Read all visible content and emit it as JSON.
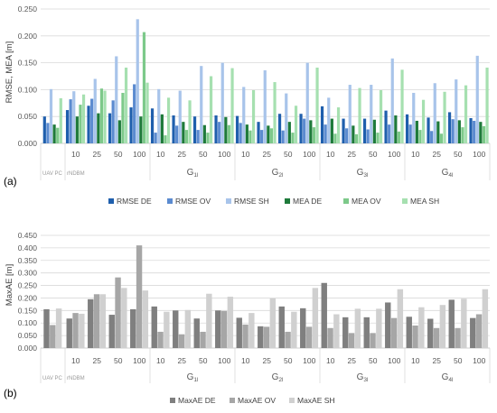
{
  "charts": [
    {
      "panel_label": "(a)",
      "chart_data": {
        "type": "bar",
        "ylabel": "RMSE, MEA [m]",
        "ylim": [
          0,
          0.25
        ],
        "yticks": [
          "0.000",
          "0.050",
          "0.100",
          "0.150",
          "0.200",
          "0.250"
        ],
        "grid": true,
        "legend_position": "bottom",
        "groups": [
          {
            "name": "UAV PC",
            "sub": "",
            "categories": [
              ""
            ]
          },
          {
            "name": "rNDBM",
            "sub": "",
            "categories": [
              "10",
              "25",
              "50",
              "100"
            ]
          },
          {
            "name": "G",
            "sub": "1l",
            "categories": [
              "10",
              "25",
              "50",
              "100"
            ]
          },
          {
            "name": "G",
            "sub": "2l",
            "categories": [
              "10",
              "25",
              "50",
              "100"
            ]
          },
          {
            "name": "G",
            "sub": "3l",
            "categories": [
              "10",
              "25",
              "50",
              "100"
            ]
          },
          {
            "name": "G",
            "sub": "4l",
            "categories": [
              "10",
              "25",
              "50",
              "100"
            ]
          }
        ],
        "series": [
          {
            "name": "RMSE DE",
            "color": "#1f5fad",
            "values": [
              0.05,
              0.062,
              0.07,
              0.056,
              0.067,
              0.065,
              0.052,
              0.05,
              0.052,
              0.051,
              0.04,
              0.055,
              0.055,
              0.069,
              0.046,
              0.046,
              0.061,
              0.054,
              0.048,
              0.058,
              0.047
            ]
          },
          {
            "name": "RMSE OV",
            "color": "#5b8bd0",
            "values": [
              0.038,
              0.082,
              0.083,
              0.08,
              0.11,
              0.02,
              0.033,
              0.025,
              0.04,
              0.038,
              0.025,
              0.024,
              0.046,
              0.035,
              0.028,
              0.026,
              0.035,
              0.035,
              0.023,
              0.045,
              0.042
            ]
          },
          {
            "name": "RMSE SH",
            "color": "#a8c4ea",
            "values": [
              0.101,
              0.097,
              0.12,
              0.162,
              0.231,
              0.101,
              0.098,
              0.144,
              0.15,
              0.105,
              0.136,
              0.093,
              0.15,
              0.085,
              0.109,
              0.109,
              0.158,
              0.094,
              0.112,
              0.119,
              0.163
            ]
          },
          {
            "name": "MEA DE",
            "color": "#1e7a3a",
            "values": [
              0.035,
              0.05,
              0.056,
              0.043,
              0.05,
              0.054,
              0.04,
              0.034,
              0.049,
              0.035,
              0.033,
              0.04,
              0.043,
              0.046,
              0.033,
              0.044,
              0.052,
              0.042,
              0.041,
              0.043,
              0.04
            ]
          },
          {
            "name": "MEA OV",
            "color": "#7dc98a",
            "values": [
              0.029,
              0.072,
              0.102,
              0.094,
              0.207,
              0.015,
              0.025,
              0.02,
              0.034,
              0.024,
              0.028,
              0.02,
              0.03,
              0.018,
              0.017,
              0.02,
              0.022,
              0.025,
              0.018,
              0.03,
              0.032
            ]
          },
          {
            "name": "MEA SH",
            "color": "#a6e0b0",
            "values": [
              0.084,
              0.091,
              0.098,
              0.141,
              0.113,
              0.085,
              0.08,
              0.125,
              0.14,
              0.099,
              0.114,
              0.07,
              0.141,
              0.067,
              0.103,
              0.099,
              0.137,
              0.081,
              0.096,
              0.108,
              0.141
            ]
          }
        ]
      }
    },
    {
      "panel_label": "(b)",
      "chart_data": {
        "type": "bar",
        "ylabel": "MaxAE [m]",
        "ylim": [
          0,
          0.45
        ],
        "yticks": [
          "0.000",
          "0.050",
          "0.100",
          "0.150",
          "0.200",
          "0.250",
          "0.300",
          "0.350",
          "0.400",
          "0.450"
        ],
        "grid": true,
        "legend_position": "bottom",
        "groups": [
          {
            "name": "UAV PC",
            "sub": "",
            "categories": [
              ""
            ]
          },
          {
            "name": "rNDBM",
            "sub": "",
            "categories": [
              "10",
              "25",
              "50",
              "100"
            ]
          },
          {
            "name": "G",
            "sub": "1l",
            "categories": [
              "10",
              "25",
              "50",
              "100"
            ]
          },
          {
            "name": "G",
            "sub": "2l",
            "categories": [
              "10",
              "25",
              "50",
              "100"
            ]
          },
          {
            "name": "G",
            "sub": "3l",
            "categories": [
              "10",
              "25",
              "50",
              "100"
            ]
          },
          {
            "name": "G",
            "sub": "4l",
            "categories": [
              "10",
              "25",
              "50",
              "100"
            ]
          }
        ],
        "series": [
          {
            "name": "MaxAE DE",
            "color": "#7f7f7f",
            "values": [
              0.155,
              0.118,
              0.195,
              0.133,
              0.155,
              0.166,
              0.15,
              0.118,
              0.15,
              0.121,
              0.087,
              0.166,
              0.159,
              0.26,
              0.123,
              0.123,
              0.182,
              0.125,
              0.117,
              0.193,
              0.12
            ]
          },
          {
            "name": "MaxAE OV",
            "color": "#a6a6a6",
            "values": [
              0.092,
              0.14,
              0.215,
              0.282,
              0.41,
              0.065,
              0.055,
              0.065,
              0.148,
              0.094,
              0.085,
              0.065,
              0.085,
              0.08,
              0.06,
              0.06,
              0.12,
              0.09,
              0.08,
              0.08,
              0.135
            ]
          },
          {
            "name": "MaxAE SH",
            "color": "#d0d0d0",
            "values": [
              0.158,
              0.137,
              0.215,
              0.24,
              0.23,
              0.145,
              0.152,
              0.217,
              0.205,
              0.14,
              0.198,
              0.145,
              0.24,
              0.135,
              0.157,
              0.157,
              0.235,
              0.163,
              0.172,
              0.197,
              0.235
            ]
          }
        ]
      }
    }
  ]
}
